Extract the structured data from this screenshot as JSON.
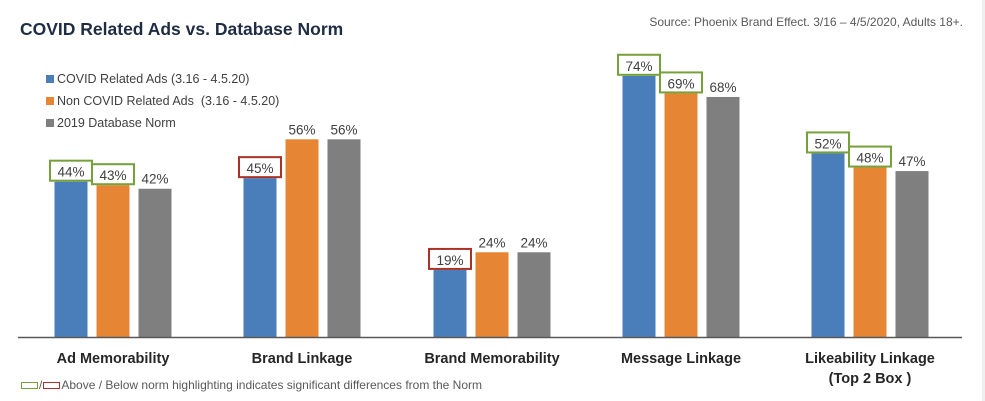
{
  "header": {
    "title": "COVID Related Ads vs. Database Norm",
    "source": "Source: Phoenix Brand Effect. 3/16 – 4/5/2020, Adults 18+."
  },
  "legend": {
    "items": [
      {
        "label": "COVID Related Ads (3.16 - 4.5.20)",
        "color": "#4a7ebb"
      },
      {
        "label": "Non COVID Related Ads  (3.16 - 4.5.20)",
        "color": "#e68533"
      },
      {
        "label": "2019 Database Norm",
        "color": "#7f7f7f"
      }
    ]
  },
  "footnote": {
    "slash": "/",
    "text": "Above / Below norm highlighting indicates significant differences from the Norm",
    "above_color": "#76a03a",
    "below_color": "#a93226"
  },
  "chart_data": {
    "type": "bar",
    "title": "COVID Related Ads vs. Database Norm",
    "xlabel": "",
    "ylabel": "",
    "ylim": [
      0,
      80
    ],
    "grid": false,
    "legend_position": "top-left",
    "categories": [
      [
        "Ad Memorability"
      ],
      [
        "Brand Linkage"
      ],
      [
        "Brand Memorability"
      ],
      [
        "Message Linkage"
      ],
      [
        "Likeability Linkage",
        "(Top 2 Box )"
      ]
    ],
    "series": [
      {
        "name": "COVID Related Ads (3.16 - 4.5.20)",
        "color": "#4a7ebb",
        "values": [
          44,
          45,
          19,
          74,
          52
        ],
        "labels": [
          "44%",
          "45%",
          "19%",
          "74%",
          "52%"
        ],
        "highlight": [
          "above",
          "below",
          "below",
          "above",
          "above"
        ]
      },
      {
        "name": "Non COVID Related Ads  (3.16 - 4.5.20)",
        "color": "#e68533",
        "values": [
          43,
          56,
          24,
          69,
          48
        ],
        "labels": [
          "43%",
          "56%",
          "24%",
          "69%",
          "48%"
        ],
        "highlight": [
          "above",
          "none",
          "none",
          "above",
          "above"
        ]
      },
      {
        "name": "2019 Database Norm",
        "color": "#7f7f7f",
        "values": [
          42,
          56,
          24,
          68,
          47
        ],
        "labels": [
          "42%",
          "56%",
          "24%",
          "68%",
          "47%"
        ],
        "highlight": [
          "none",
          "none",
          "none",
          "none",
          "none"
        ]
      }
    ]
  }
}
